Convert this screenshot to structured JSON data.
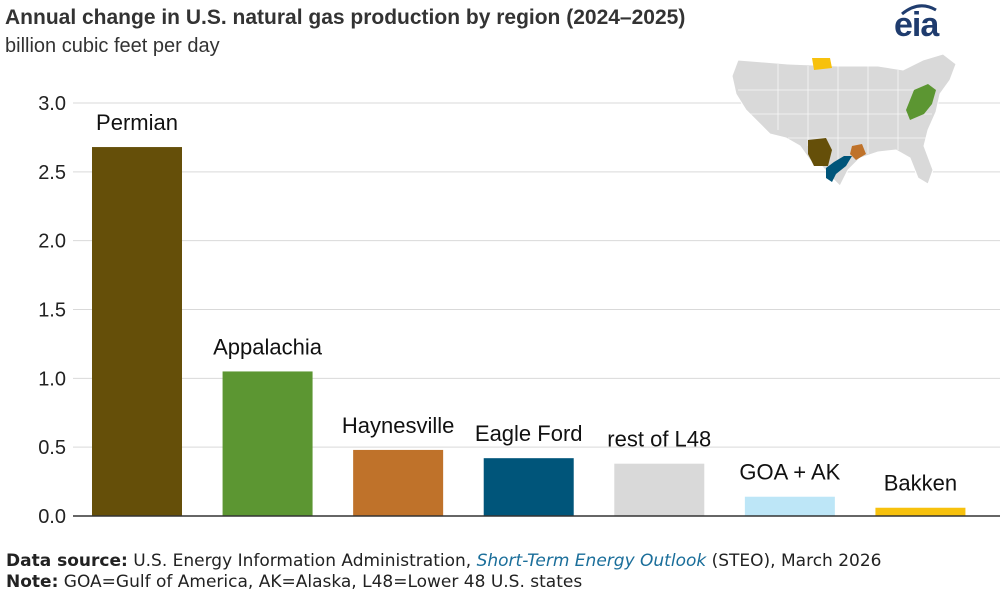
{
  "header": {
    "title": "Annual change in U.S. natural gas production by region (2024–2025)",
    "subtitle": "billion cubic feet per day",
    "logo_text": "eia"
  },
  "chart_data": {
    "type": "bar",
    "title": "Annual change in U.S. natural gas production by region (2024–2025)",
    "ylabel": "billion cubic feet per day",
    "ylim": [
      0,
      3.0
    ],
    "yticks": [
      "0.0",
      "0.5",
      "1.0",
      "1.5",
      "2.0",
      "2.5",
      "3.0"
    ],
    "grid": true,
    "categories": [
      "Permian",
      "Appalachia",
      "Haynesville",
      "Eagle Ford",
      "rest of L48",
      "GOA + AK",
      "Bakken"
    ],
    "values": [
      2.68,
      1.05,
      0.48,
      0.42,
      0.38,
      0.14,
      0.06
    ],
    "colors": [
      "#654f09",
      "#5c9632",
      "#bf722a",
      "#00557a",
      "#d9d9d9",
      "#bde6f7",
      "#f7c10d"
    ]
  },
  "footer": {
    "source_label": "Data source:",
    "source_text_pre": " U.S. Energy Information Administration, ",
    "source_link": "Short-Term Energy Outlook",
    "source_text_post": " (STEO), March 2026",
    "note_label": "Note:",
    "note_text": " GOA=Gulf of America, AK=Alaska, L48=Lower 48 U.S. states"
  },
  "map": {
    "icon": "us-map-icon",
    "highlight_colors": [
      "#654f09",
      "#5c9632",
      "#bf722a",
      "#00557a",
      "#f7c10d"
    ],
    "base_color": "#d9d9d9"
  }
}
